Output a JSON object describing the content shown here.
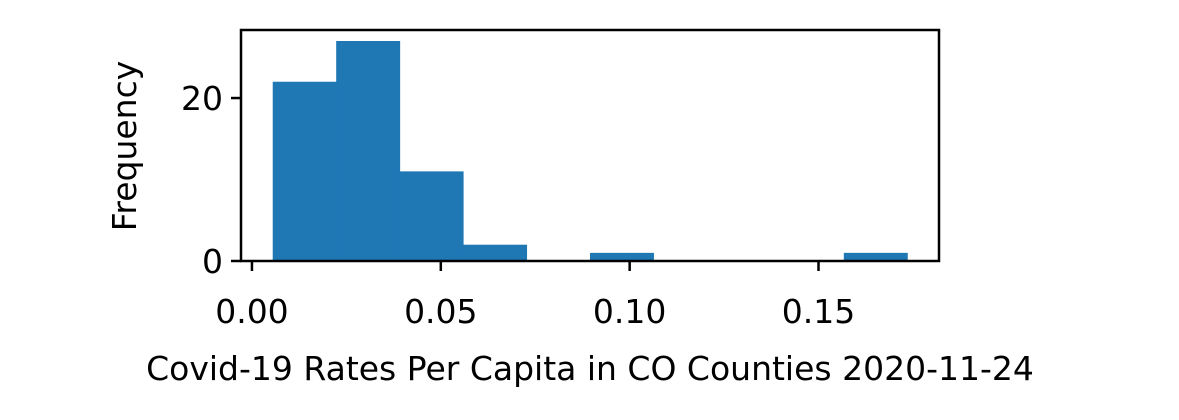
{
  "chart_data": {
    "type": "bar",
    "histogram": true,
    "bins": [
      {
        "x0": 0.0055,
        "x1": 0.0223,
        "count": 22
      },
      {
        "x0": 0.0223,
        "x1": 0.0391,
        "count": 27
      },
      {
        "x0": 0.0391,
        "x1": 0.0559,
        "count": 11
      },
      {
        "x0": 0.0559,
        "x1": 0.0727,
        "count": 2
      },
      {
        "x0": 0.0727,
        "x1": 0.0895,
        "count": 0
      },
      {
        "x0": 0.0895,
        "x1": 0.1063,
        "count": 1
      },
      {
        "x0": 0.1063,
        "x1": 0.1231,
        "count": 0
      },
      {
        "x0": 0.1231,
        "x1": 0.1399,
        "count": 0
      },
      {
        "x0": 0.1399,
        "x1": 0.1567,
        "count": 0
      },
      {
        "x0": 0.1567,
        "x1": 0.1735,
        "count": 1
      }
    ],
    "xlabel": "Covid-19 Rates Per Capita in CO Counties 2020-11-24",
    "ylabel": "Frequency",
    "xlim": [
      -0.0029,
      0.1819
    ],
    "ylim": [
      0,
      28.35
    ],
    "xticks": [
      {
        "value": 0.0,
        "label": "0.00"
      },
      {
        "value": 0.05,
        "label": "0.05"
      },
      {
        "value": 0.1,
        "label": "0.10"
      },
      {
        "value": 0.15,
        "label": "0.15"
      }
    ],
    "yticks": [
      {
        "value": 0,
        "label": "0"
      },
      {
        "value": 20,
        "label": "20"
      }
    ],
    "grid": false,
    "bar_color": "#1f77b4"
  }
}
